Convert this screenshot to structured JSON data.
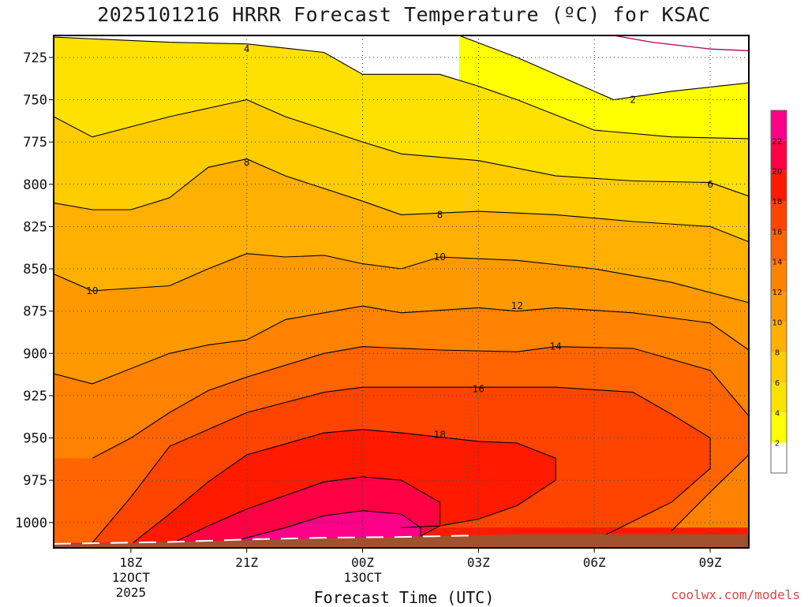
{
  "chart_data": {
    "type": "contour",
    "title": "2025101216 HRRR Forecast Temperature (ºC) for KSAC",
    "xlabel": "Forecast Time (UTC)",
    "ylabel": "",
    "y_axis": {
      "ticks": [
        725,
        750,
        775,
        800,
        825,
        850,
        875,
        900,
        925,
        950,
        975,
        1000
      ],
      "range": [
        712,
        1015
      ],
      "unit": "hPa"
    },
    "x_axis": {
      "range_hours": [
        -2,
        16
      ],
      "ticks": [
        {
          "hour": 0,
          "lines": [
            "18Z",
            "12OCT",
            "2025"
          ]
        },
        {
          "hour": 3,
          "lines": [
            "21Z"
          ]
        },
        {
          "hour": 6,
          "lines": [
            "00Z",
            "13OCT"
          ]
        },
        {
          "hour": 9,
          "lines": [
            "03Z"
          ]
        },
        {
          "hour": 12,
          "lines": [
            "06Z"
          ]
        },
        {
          "hour": 15,
          "lines": [
            "09Z"
          ]
        }
      ]
    },
    "contour_levels": [
      2,
      4,
      6,
      8,
      10,
      12,
      14,
      16,
      18,
      20,
      22
    ],
    "colorbar": {
      "labels": [
        "2",
        "4",
        "6",
        "8",
        "10",
        "12",
        "14",
        "16",
        "18",
        "20",
        "22"
      ],
      "colors": [
        "#ffffff",
        "#ffff00",
        "#ffe100",
        "#ffcc00",
        "#ffb000",
        "#ff9900",
        "#ff8200",
        "#ff6400",
        "#ff4400",
        "#ff1a00",
        "#ff0044",
        "#ff0088"
      ]
    },
    "contour_labels": [
      {
        "text": "4",
        "hour": 3.0,
        "p": 720
      },
      {
        "text": "2",
        "hour": 13.0,
        "p": 750
      },
      {
        "text": "8",
        "hour": 3.0,
        "p": 787
      },
      {
        "text": "6",
        "hour": 15.0,
        "p": 800
      },
      {
        "text": "8",
        "hour": 8.0,
        "p": 818
      },
      {
        "text": "10",
        "hour": 8.0,
        "p": 843
      },
      {
        "text": "10",
        "hour": -1.0,
        "p": 863
      },
      {
        "text": "12",
        "hour": 10.0,
        "p": 872
      },
      {
        "text": "14",
        "hour": 11.0,
        "p": 896
      },
      {
        "text": "16",
        "hour": 9.0,
        "p": 921
      },
      {
        "text": "18",
        "hour": 8.0,
        "p": 948
      }
    ],
    "terrain_color": "#a0522d",
    "isotherms": [
      {
        "level": 2,
        "color": "#ffff00",
        "points": [
          [
            8.5,
            712
          ],
          [
            10,
            725
          ],
          [
            11.5,
            740
          ],
          [
            12.5,
            750
          ],
          [
            14,
            745
          ],
          [
            16,
            740
          ]
        ]
      },
      {
        "level": 4,
        "color": "#ffe100",
        "points": [
          [
            -2,
            713
          ],
          [
            1,
            716
          ],
          [
            3,
            717
          ],
          [
            5,
            722
          ],
          [
            6,
            735
          ],
          [
            8,
            735
          ],
          [
            9,
            742
          ],
          [
            10,
            750
          ],
          [
            12,
            768
          ],
          [
            14,
            772
          ],
          [
            16,
            773
          ]
        ]
      },
      {
        "level": 6,
        "color": "#ffcc00",
        "points": [
          [
            -2,
            760
          ],
          [
            -1,
            772
          ],
          [
            1,
            760
          ],
          [
            3,
            750
          ],
          [
            4,
            760
          ],
          [
            6,
            775
          ],
          [
            7,
            782
          ],
          [
            9,
            786
          ],
          [
            11,
            795
          ],
          [
            13,
            798
          ],
          [
            15,
            799
          ],
          [
            16,
            807
          ]
        ]
      },
      {
        "level": 8,
        "color": "#ffb000",
        "points": [
          [
            -2,
            811
          ],
          [
            -1,
            815
          ],
          [
            0,
            815
          ],
          [
            1,
            808
          ],
          [
            2,
            790
          ],
          [
            3,
            785
          ],
          [
            4,
            795
          ],
          [
            6,
            810
          ],
          [
            7,
            818
          ],
          [
            9,
            816
          ],
          [
            11,
            818
          ],
          [
            13,
            822
          ],
          [
            15,
            825
          ],
          [
            16,
            834
          ]
        ]
      },
      {
        "level": 10,
        "color": "#ff9900",
        "points": [
          [
            -2,
            853
          ],
          [
            -1,
            863
          ],
          [
            1,
            860
          ],
          [
            2,
            850
          ],
          [
            3,
            841
          ],
          [
            4,
            843
          ],
          [
            5,
            842
          ],
          [
            6,
            847
          ],
          [
            7,
            850
          ],
          [
            8,
            843
          ],
          [
            10,
            845
          ],
          [
            12,
            850
          ],
          [
            14,
            858
          ],
          [
            16,
            870
          ]
        ]
      },
      {
        "level": 12,
        "color": "#ff8200",
        "points": [
          [
            -2,
            912
          ],
          [
            -1,
            918
          ],
          [
            1,
            900
          ],
          [
            2,
            895
          ],
          [
            3,
            892
          ],
          [
            4,
            880
          ],
          [
            5,
            876
          ],
          [
            6,
            872
          ],
          [
            7,
            876
          ],
          [
            9,
            873
          ],
          [
            10,
            875
          ],
          [
            11,
            873
          ],
          [
            13,
            876
          ],
          [
            15,
            882
          ],
          [
            16,
            898
          ]
        ]
      },
      {
        "level": 14,
        "color": "#ff6400",
        "points": [
          [
            -1,
            962
          ],
          [
            0,
            950
          ],
          [
            1,
            935
          ],
          [
            2,
            922
          ],
          [
            3,
            914
          ],
          [
            5,
            900
          ],
          [
            6,
            896
          ],
          [
            8,
            898
          ],
          [
            10,
            899
          ],
          [
            11,
            896
          ],
          [
            13,
            897
          ],
          [
            15,
            910
          ],
          [
            16,
            937
          ],
          [
            16,
            960
          ],
          [
            15,
            982
          ],
          [
            14,
            1005
          ]
        ]
      },
      {
        "level": 16,
        "color": "#ff4400",
        "points": [
          [
            -1,
            1012
          ],
          [
            0,
            985
          ],
          [
            1,
            955
          ],
          [
            3,
            935
          ],
          [
            5,
            923
          ],
          [
            6,
            920
          ],
          [
            8,
            920
          ],
          [
            10,
            920
          ],
          [
            11,
            920
          ],
          [
            13,
            923
          ],
          [
            14,
            936
          ],
          [
            15,
            950
          ],
          [
            15,
            968
          ],
          [
            14,
            988
          ],
          [
            12.5,
            1005
          ],
          [
            12,
            1010
          ]
        ]
      },
      {
        "level": 18,
        "color": "#ff1a00",
        "points": [
          [
            0,
            1013
          ],
          [
            1,
            995
          ],
          [
            2,
            976
          ],
          [
            3,
            960
          ],
          [
            5,
            947
          ],
          [
            6,
            945
          ],
          [
            7,
            947
          ],
          [
            9,
            952
          ],
          [
            10,
            953
          ],
          [
            11,
            962
          ],
          [
            11,
            975
          ],
          [
            10,
            990
          ],
          [
            9,
            998
          ],
          [
            8,
            1002
          ],
          [
            7,
            1003
          ]
        ]
      },
      {
        "level": 20,
        "color": "#ff0044",
        "points": [
          [
            1,
            1013
          ],
          [
            2,
            1002
          ],
          [
            3,
            992
          ],
          [
            4,
            984
          ],
          [
            5,
            976
          ],
          [
            6,
            973
          ],
          [
            7,
            975
          ],
          [
            8,
            988
          ],
          [
            8,
            1002
          ],
          [
            7.5,
            1008
          ]
        ]
      },
      {
        "level": 22,
        "color": "#ff0088",
        "points": [
          [
            2.5,
            1012
          ],
          [
            4,
            1003
          ],
          [
            5,
            996
          ],
          [
            6,
            993
          ],
          [
            7,
            995
          ],
          [
            7.5,
            1003
          ],
          [
            7.5,
            1010
          ]
        ]
      }
    ],
    "cold_top_contour": {
      "points": [
        [
          12.5,
          712
        ],
        [
          13.5,
          716
        ],
        [
          15,
          720
        ],
        [
          16,
          721
        ]
      ]
    }
  },
  "credit": "coolwx.com/models"
}
